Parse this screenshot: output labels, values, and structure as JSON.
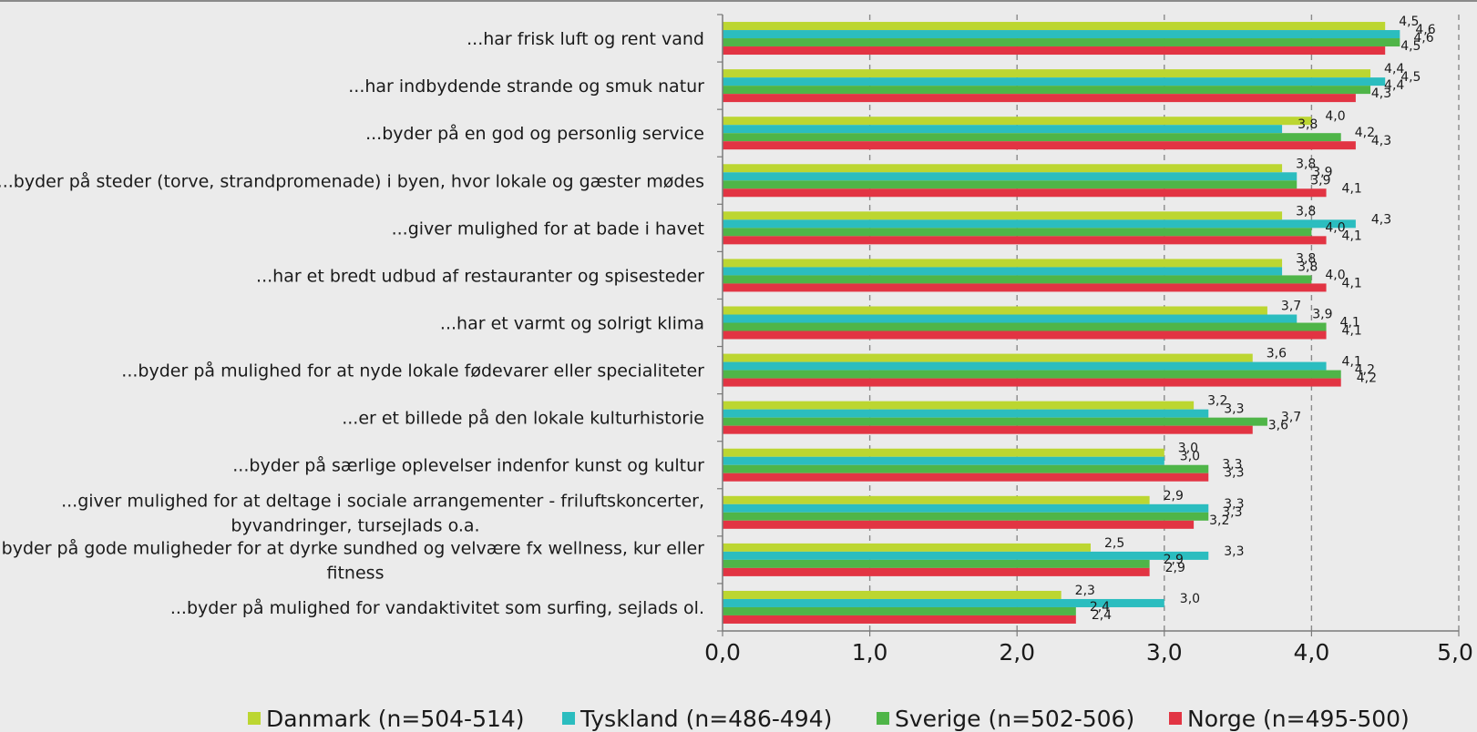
{
  "chart_data": {
    "type": "bar",
    "orientation": "horizontal",
    "categories": [
      [
        "...har frisk luft og rent vand"
      ],
      [
        "...har indbydende strande og smuk natur"
      ],
      [
        "...byder på en god og personlig service"
      ],
      [
        "...byder på steder (torve, strandpromenade) i byen, hvor lokale og gæster mødes"
      ],
      [
        "...giver mulighed for at bade i havet"
      ],
      [
        "...har et bredt udbud af restauranter og spisesteder"
      ],
      [
        "...har et varmt og solrigt klima"
      ],
      [
        "...byder på mulighed for at nyde lokale fødevarer eller specialiteter"
      ],
      [
        "...er et billede på den lokale kulturhistorie"
      ],
      [
        "...byder på særlige oplevelser indenfor kunst og kultur"
      ],
      [
        "...giver mulighed for at deltage i sociale arrangementer - friluftskoncerter,",
        "byvandringer, tursejlads o.a."
      ],
      [
        "...byder på gode muligheder for at dyrke sundhed og velvære fx wellness, kur eller",
        "fitness"
      ],
      [
        "...byder på mulighed for vandaktivitet som surfing, sejlads ol."
      ]
    ],
    "series": [
      {
        "name": "Danmark (n=504-514)",
        "color": "#bcd631",
        "values": [
          4.5,
          4.4,
          4.0,
          3.8,
          3.8,
          3.8,
          3.7,
          3.6,
          3.2,
          3.0,
          2.9,
          2.5,
          2.3
        ]
      },
      {
        "name": "Tyskland (n=486-494)",
        "color": "#2bbdbf",
        "values": [
          4.6,
          4.5,
          3.8,
          3.9,
          4.3,
          3.8,
          3.9,
          4.1,
          3.3,
          3.0,
          3.3,
          3.3,
          3.0
        ]
      },
      {
        "name": "Sverige (n=502-506)",
        "color": "#4fb548",
        "values": [
          4.6,
          4.4,
          4.2,
          3.9,
          4.0,
          4.0,
          4.1,
          4.2,
          3.7,
          3.3,
          3.3,
          2.9,
          2.4
        ]
      },
      {
        "name": "Norge (n=495-500)",
        "color": "#e23443",
        "values": [
          4.5,
          4.3,
          4.3,
          4.1,
          4.1,
          4.1,
          4.1,
          4.2,
          3.6,
          3.3,
          3.2,
          2.9,
          2.4
        ]
      }
    ],
    "xlim": [
      0,
      5
    ],
    "xticks": [
      "0,0",
      "1,0",
      "2,0",
      "3,0",
      "4,0",
      "5,0"
    ],
    "decimal_separator": ",",
    "grid": "vertical dashed",
    "legend_position": "bottom"
  }
}
